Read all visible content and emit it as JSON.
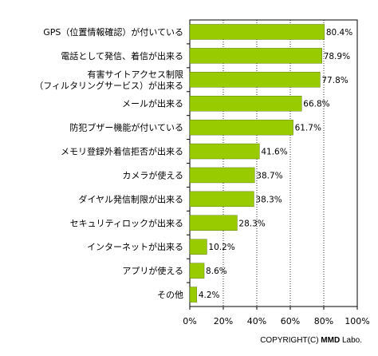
{
  "chart_data": {
    "type": "bar",
    "orientation": "horizontal",
    "categories": [
      [
        "GPS（位置情報確認）が付いている"
      ],
      [
        "電話として発信、着信が出来る"
      ],
      [
        "有害サイトアクセス制限",
        "（フィルタリングサービス）が出来る"
      ],
      [
        "メールが出来る"
      ],
      [
        "防犯ブザー機能が付いている"
      ],
      [
        "メモリ登録外着信拒否が出来る"
      ],
      [
        "カメラが使える"
      ],
      [
        "ダイヤル発信制限が出来る"
      ],
      [
        "セキュリティロックが出来る"
      ],
      [
        "インターネットが出来る"
      ],
      [
        "アプリが使える"
      ],
      [
        "その他"
      ]
    ],
    "values": [
      80.4,
      78.9,
      77.8,
      66.8,
      61.7,
      41.6,
      38.7,
      38.3,
      28.3,
      10.2,
      8.6,
      4.2
    ],
    "value_labels": [
      "80.4%",
      "78.9%",
      "77.8%",
      "66.8%",
      "61.7%",
      "41.6%",
      "38.7%",
      "38.3%",
      "28.3%",
      "10.2%",
      "8.6%",
      "4.2%"
    ],
    "xlim": [
      0,
      100
    ],
    "xticks": [
      "0%",
      "20%",
      "40%",
      "60%",
      "80%",
      "100%"
    ],
    "grid": "vertical-dotted",
    "bar_color": "#99cc00"
  },
  "footer": {
    "copyright_prefix": "COPYRIGHT(C) ",
    "copyright_brand": "MMD",
    "copyright_suffix": " Labo."
  }
}
